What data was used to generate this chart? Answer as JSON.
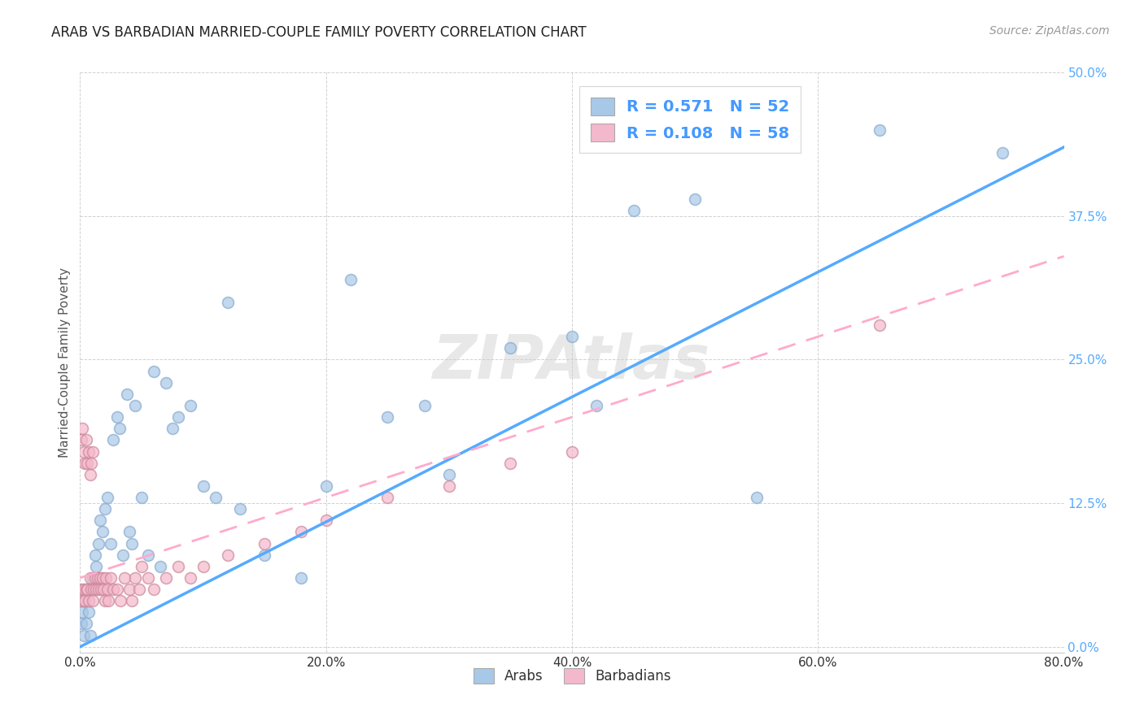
{
  "title": "ARAB VS BARBADIAN MARRIED-COUPLE FAMILY POVERTY CORRELATION CHART",
  "source": "Source: ZipAtlas.com",
  "ylabel": "Married-Couple Family Poverty",
  "xlim": [
    0,
    0.8
  ],
  "ylim": [
    -0.005,
    0.5
  ],
  "xtick_vals": [
    0.0,
    0.2,
    0.4,
    0.6,
    0.8
  ],
  "ytick_vals": [
    0.0,
    0.125,
    0.25,
    0.375,
    0.5
  ],
  "ytick_labels": [
    "0.0%",
    "12.5%",
    "25.0%",
    "37.5%",
    "50.0%"
  ],
  "arab_color": "#a8c8e8",
  "arab_edge_color": "#88aacc",
  "barbadian_color": "#f4b8cc",
  "barbadian_edge_color": "#cc8899",
  "arab_line_color": "#55aaff",
  "barbadian_line_color": "#ffaacc",
  "legend_arab_label": "Arabs",
  "legend_barbadian_label": "Barbadians",
  "R_arab": "0.571",
  "N_arab": "52",
  "R_barbadian": "0.108",
  "N_barbadian": "58",
  "watermark": "ZIPAtlas",
  "arab_x": [
    0.001,
    0.002,
    0.003,
    0.004,
    0.005,
    0.006,
    0.007,
    0.008,
    0.01,
    0.012,
    0.013,
    0.015,
    0.016,
    0.018,
    0.02,
    0.022,
    0.025,
    0.027,
    0.03,
    0.032,
    0.035,
    0.038,
    0.04,
    0.042,
    0.045,
    0.05,
    0.055,
    0.06,
    0.065,
    0.07,
    0.075,
    0.08,
    0.09,
    0.1,
    0.11,
    0.12,
    0.13,
    0.15,
    0.18,
    0.2,
    0.22,
    0.25,
    0.28,
    0.3,
    0.35,
    0.4,
    0.42,
    0.45,
    0.5,
    0.55,
    0.65,
    0.75
  ],
  "arab_y": [
    0.02,
    0.03,
    0.01,
    0.04,
    0.02,
    0.05,
    0.03,
    0.01,
    0.06,
    0.08,
    0.07,
    0.09,
    0.11,
    0.1,
    0.12,
    0.13,
    0.09,
    0.18,
    0.2,
    0.19,
    0.08,
    0.22,
    0.1,
    0.09,
    0.21,
    0.13,
    0.08,
    0.24,
    0.07,
    0.23,
    0.19,
    0.2,
    0.21,
    0.14,
    0.13,
    0.3,
    0.12,
    0.08,
    0.06,
    0.14,
    0.32,
    0.2,
    0.21,
    0.15,
    0.26,
    0.27,
    0.21,
    0.38,
    0.39,
    0.13,
    0.45,
    0.43
  ],
  "barbadian_x": [
    0.001,
    0.001,
    0.002,
    0.002,
    0.003,
    0.003,
    0.004,
    0.004,
    0.005,
    0.005,
    0.006,
    0.006,
    0.007,
    0.007,
    0.008,
    0.008,
    0.009,
    0.009,
    0.01,
    0.01,
    0.011,
    0.012,
    0.013,
    0.014,
    0.015,
    0.016,
    0.017,
    0.018,
    0.019,
    0.02,
    0.021,
    0.022,
    0.023,
    0.025,
    0.027,
    0.03,
    0.033,
    0.036,
    0.04,
    0.042,
    0.045,
    0.048,
    0.05,
    0.055,
    0.06,
    0.07,
    0.08,
    0.09,
    0.1,
    0.12,
    0.15,
    0.18,
    0.2,
    0.25,
    0.3,
    0.35,
    0.4,
    0.65
  ],
  "barbadian_y": [
    0.05,
    0.18,
    0.04,
    0.19,
    0.05,
    0.17,
    0.04,
    0.16,
    0.05,
    0.18,
    0.05,
    0.16,
    0.04,
    0.17,
    0.06,
    0.15,
    0.05,
    0.16,
    0.04,
    0.17,
    0.05,
    0.06,
    0.05,
    0.06,
    0.05,
    0.06,
    0.05,
    0.06,
    0.05,
    0.04,
    0.06,
    0.05,
    0.04,
    0.06,
    0.05,
    0.05,
    0.04,
    0.06,
    0.05,
    0.04,
    0.06,
    0.05,
    0.07,
    0.06,
    0.05,
    0.06,
    0.07,
    0.06,
    0.07,
    0.08,
    0.09,
    0.1,
    0.11,
    0.13,
    0.14,
    0.16,
    0.17,
    0.28
  ],
  "arab_line_x0": 0.0,
  "arab_line_x1": 0.8,
  "arab_line_y0": 0.0,
  "arab_line_y1": 0.435,
  "barb_line_x0": 0.0,
  "barb_line_x1": 0.8,
  "barb_line_y0": 0.06,
  "barb_line_y1": 0.34
}
